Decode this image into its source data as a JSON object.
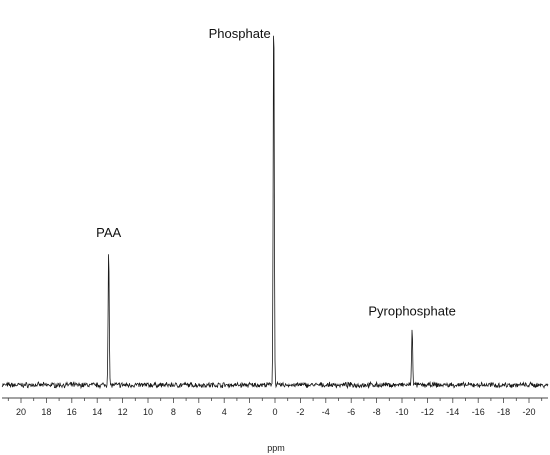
{
  "chart_data": {
    "type": "line",
    "xlabel": "ppm",
    "ylabel": "",
    "xlim": [
      21.5,
      -21.5
    ],
    "x_reversed": true,
    "grid": false,
    "ticks": [
      20,
      18,
      16,
      14,
      12,
      10,
      8,
      6,
      4,
      2,
      0,
      -2,
      -4,
      -6,
      -8,
      -10,
      -12,
      -14,
      -16,
      -18,
      -20
    ],
    "series": [
      {
        "peaks": [
          {
            "label": "PAA",
            "ppm": 13.1,
            "height": 0.36
          },
          {
            "label": "Phosphate",
            "ppm": 0.1,
            "height": 1.0
          },
          {
            "label": "Pyrophosphate",
            "ppm": -10.8,
            "height": 0.15
          }
        ]
      }
    ],
    "line_color": "#1a1a1a"
  }
}
